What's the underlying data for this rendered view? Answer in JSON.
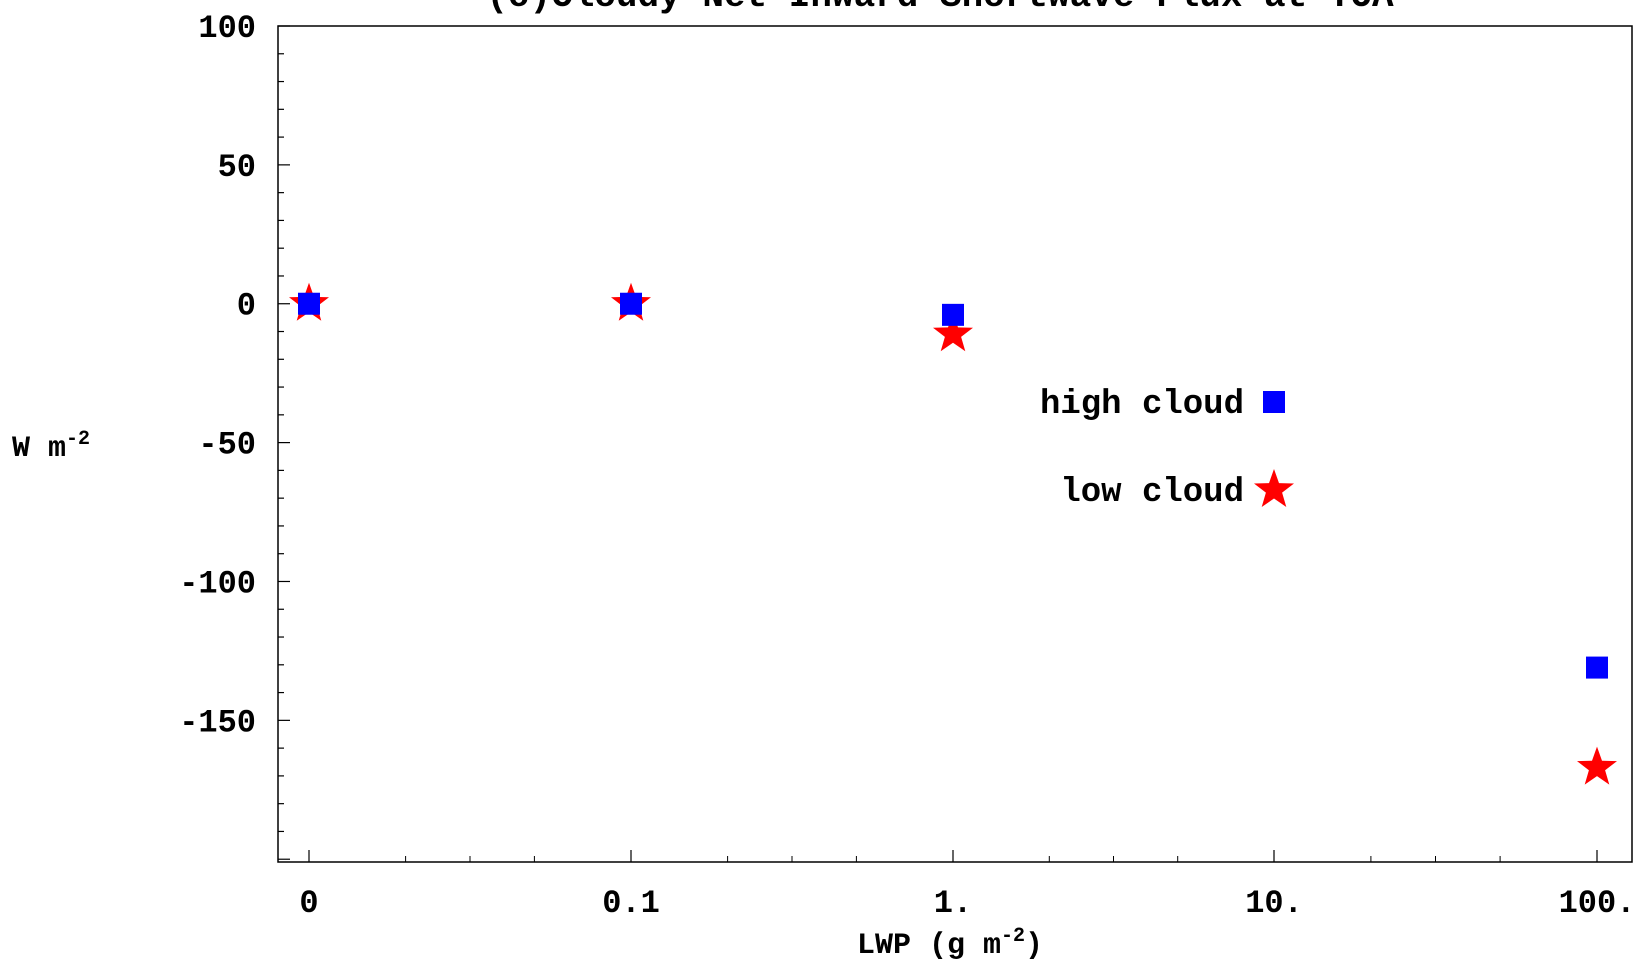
{
  "chart_data": {
    "type": "scatter",
    "title": "(c)Cloudy Net Inward Shortwave Flux at TOA",
    "xlabel": {
      "main": "LWP (g m",
      "sup": "-2",
      "close": ")"
    },
    "ylabel": {
      "main": "W m",
      "sup": "-2"
    },
    "x_scale": "log-like categorical",
    "x_tick_labels": [
      "0",
      "0.1",
      "1.",
      "10.",
      "100."
    ],
    "y_ticks": [
      100,
      50,
      0,
      -50,
      -100,
      -150
    ],
    "y_tick_labels": [
      "100",
      "50",
      "0",
      "-50",
      "-100",
      "-150"
    ],
    "ylim": [
      -201,
      100
    ],
    "grid": false,
    "legend_position": "right",
    "series": [
      {
        "name": "high cloud",
        "marker": "square",
        "color": "#0000ff",
        "x": [
          "0",
          "0.1",
          "1.",
          "100."
        ],
        "y": [
          0,
          0,
          -4,
          -131
        ]
      },
      {
        "name": "low cloud",
        "marker": "star",
        "color": "#ff0000",
        "x": [
          "0",
          "0.1",
          "1.",
          "100."
        ],
        "y": [
          0,
          0,
          -11,
          -167
        ]
      }
    ]
  }
}
